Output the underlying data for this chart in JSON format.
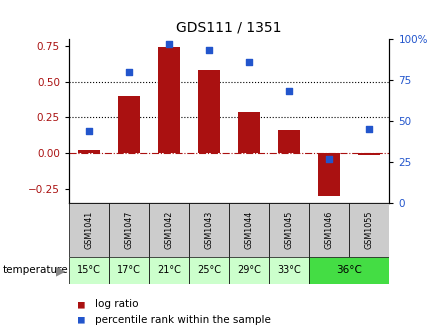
{
  "title": "GDS111 / 1351",
  "samples": [
    "GSM1041",
    "GSM1047",
    "GSM1042",
    "GSM1043",
    "GSM1044",
    "GSM1045",
    "GSM1046",
    "GSM1055"
  ],
  "log_ratio": [
    0.02,
    0.4,
    0.74,
    0.58,
    0.29,
    0.16,
    -0.3,
    -0.01
  ],
  "percentile_rank": [
    44,
    80,
    97,
    93,
    86,
    68,
    27,
    45
  ],
  "bar_color": "#aa1111",
  "dot_color": "#2255cc",
  "ylim_left": [
    -0.35,
    0.8
  ],
  "ylim_right": [
    0,
    100
  ],
  "yticks_left": [
    -0.25,
    0.0,
    0.25,
    0.5,
    0.75
  ],
  "yticks_right": [
    0,
    25,
    50,
    75,
    100
  ],
  "hlines": [
    0.25,
    0.5
  ],
  "background_color": "#ffffff",
  "sample_row_color": "#cccccc",
  "temp_light": "#ccffcc",
  "temp_dark": "#44dd44",
  "single_temps": [
    "15°C",
    "17°C",
    "21°C",
    "25°C",
    "29°C",
    "33°C"
  ],
  "group_36_label": "36°C",
  "temp_label": "temperature",
  "legend_log": "log ratio",
  "legend_pct": "percentile rank within the sample"
}
